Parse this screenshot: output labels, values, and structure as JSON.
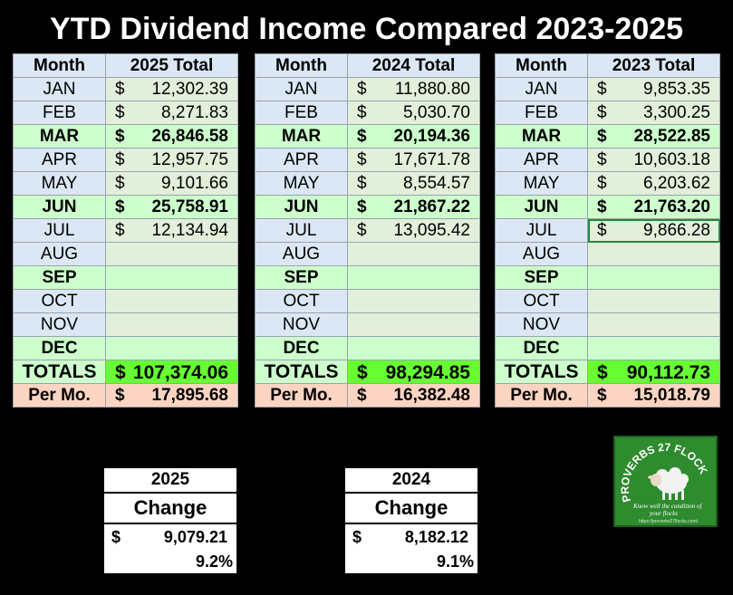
{
  "title": "YTD Dividend Income Compared 2023-2025",
  "colors": {
    "header": "#dbe7f4",
    "green_row": "#ccffcc",
    "totals": "#66ff33",
    "per_month": "#fbd5c2",
    "logo_bg": "#2e8b2e"
  },
  "tables": [
    {
      "month_header": "Month",
      "value_header": "2025 Total",
      "rows": [
        {
          "month": "JAN",
          "cur": "$",
          "value": "12,302.39"
        },
        {
          "month": "FEB",
          "cur": "$",
          "value": "8,271.83"
        },
        {
          "month": "MAR",
          "cur": "$",
          "value": "26,846.58"
        },
        {
          "month": "APR",
          "cur": "$",
          "value": "12,957.75"
        },
        {
          "month": "MAY",
          "cur": "$",
          "value": "9,101.66"
        },
        {
          "month": "JUN",
          "cur": "$",
          "value": "25,758.91"
        },
        {
          "month": "JUL",
          "cur": "$",
          "value": "12,134.94"
        },
        {
          "month": "AUG",
          "cur": "",
          "value": ""
        },
        {
          "month": "SEP",
          "cur": "",
          "value": ""
        },
        {
          "month": "OCT",
          "cur": "",
          "value": ""
        },
        {
          "month": "NOV",
          "cur": "",
          "value": ""
        },
        {
          "month": "DEC",
          "cur": "",
          "value": ""
        }
      ],
      "totals_label": "TOTALS",
      "totals_cur": "$",
      "totals_value": "107,374.06",
      "per_label": "Per Mo.",
      "per_cur": "$",
      "per_value": "17,895.68"
    },
    {
      "month_header": "Month",
      "value_header": "2024 Total",
      "rows": [
        {
          "month": "JAN",
          "cur": "$",
          "value": "11,880.80"
        },
        {
          "month": "FEB",
          "cur": "$",
          "value": "5,030.70"
        },
        {
          "month": "MAR",
          "cur": "$",
          "value": "20,194.36"
        },
        {
          "month": "APR",
          "cur": "$",
          "value": "17,671.78"
        },
        {
          "month": "MAY",
          "cur": "$",
          "value": "8,554.57"
        },
        {
          "month": "JUN",
          "cur": "$",
          "value": "21,867.22"
        },
        {
          "month": "JUL",
          "cur": "$",
          "value": "13,095.42"
        },
        {
          "month": "AUG",
          "cur": "",
          "value": ""
        },
        {
          "month": "SEP",
          "cur": "",
          "value": ""
        },
        {
          "month": "OCT",
          "cur": "",
          "value": ""
        },
        {
          "month": "NOV",
          "cur": "",
          "value": ""
        },
        {
          "month": "DEC",
          "cur": "",
          "value": ""
        }
      ],
      "totals_label": "TOTALS",
      "totals_cur": "$",
      "totals_value": "98,294.85",
      "per_label": "Per Mo.",
      "per_cur": "$",
      "per_value": "16,382.48"
    },
    {
      "month_header": "Month",
      "value_header": "2023 Total",
      "rows": [
        {
          "month": "JAN",
          "cur": "$",
          "value": "9,853.35"
        },
        {
          "month": "FEB",
          "cur": "$",
          "value": "3,300.25"
        },
        {
          "month": "MAR",
          "cur": "$",
          "value": "28,522.85"
        },
        {
          "month": "APR",
          "cur": "$",
          "value": "10,603.18"
        },
        {
          "month": "MAY",
          "cur": "$",
          "value": "6,203.62"
        },
        {
          "month": "JUN",
          "cur": "$",
          "value": "21,763.20"
        },
        {
          "month": "JUL",
          "cur": "$",
          "value": "9,866.28"
        },
        {
          "month": "AUG",
          "cur": "",
          "value": ""
        },
        {
          "month": "SEP",
          "cur": "",
          "value": ""
        },
        {
          "month": "OCT",
          "cur": "",
          "value": ""
        },
        {
          "month": "NOV",
          "cur": "",
          "value": ""
        },
        {
          "month": "DEC",
          "cur": "",
          "value": ""
        }
      ],
      "totals_label": "TOTALS",
      "totals_cur": "$",
      "totals_value": "90,112.73",
      "per_label": "Per Mo.",
      "per_cur": "$",
      "per_value": "15,018.79"
    }
  ],
  "change_boxes": [
    {
      "year": "2025",
      "label": "Change",
      "cur": "$",
      "amount": "9,079.21",
      "percent": "9.2%"
    },
    {
      "year": "2024",
      "label": "Change",
      "cur": "$",
      "amount": "8,182.12",
      "percent": "9.1%"
    }
  ],
  "logo": {
    "text": "PROVERBS 27 FLOCKS",
    "tagline": "Know well the condition of your flocks",
    "url": "https://proverbs27flocks.com/"
  },
  "chart_data": {
    "type": "table",
    "title": "YTD Dividend Income Compared 2023-2025",
    "categories": [
      "JAN",
      "FEB",
      "MAR",
      "APR",
      "MAY",
      "JUN",
      "JUL",
      "AUG",
      "SEP",
      "OCT",
      "NOV",
      "DEC"
    ],
    "series": [
      {
        "name": "2025 Total",
        "values": [
          12302.39,
          8271.83,
          26846.58,
          12957.75,
          9101.66,
          25758.91,
          12134.94,
          null,
          null,
          null,
          null,
          null
        ],
        "total": 107374.06,
        "per_month": 17895.68
      },
      {
        "name": "2024 Total",
        "values": [
          11880.8,
          5030.7,
          20194.36,
          17671.78,
          8554.57,
          21867.22,
          13095.42,
          null,
          null,
          null,
          null,
          null
        ],
        "total": 98294.85,
        "per_month": 16382.48
      },
      {
        "name": "2023 Total",
        "values": [
          9853.35,
          3300.25,
          28522.85,
          10603.18,
          6203.62,
          21763.2,
          9866.28,
          null,
          null,
          null,
          null,
          null
        ],
        "total": 90112.73,
        "per_month": 15018.79
      }
    ],
    "change": [
      {
        "year": "2025",
        "amount": 9079.21,
        "percent": 9.2
      },
      {
        "year": "2024",
        "amount": 8182.12,
        "percent": 9.1
      }
    ]
  }
}
